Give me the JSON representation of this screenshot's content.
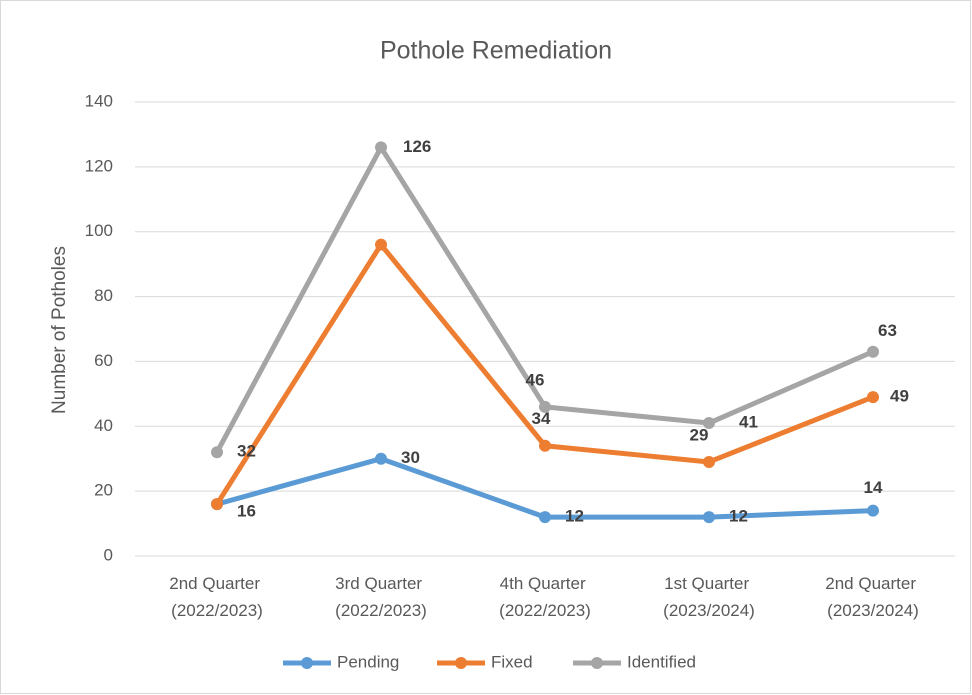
{
  "chart_data": {
    "type": "line",
    "title": "Pothole Remediation",
    "y_label": "Number of Potholes",
    "categories": [
      "2nd Quarter (2022/2023)",
      "3rd Quarter (2022/2023)",
      "4th Quarter (2022/2023)",
      "1st Quarter (2023/2024)",
      "2nd Quarter (2023/2024)"
    ],
    "series": [
      {
        "name": "Pending",
        "color": "#5b9bd5",
        "values": [
          16,
          30,
          12,
          12,
          14
        ]
      },
      {
        "name": "Fixed",
        "color": "#ed7d31",
        "values": [
          16,
          96,
          34,
          29,
          49
        ],
        "value_labels": [
          null,
          null,
          "34",
          "29",
          "49"
        ]
      },
      {
        "name": "Identified",
        "color": "#a5a5a5",
        "values": [
          32,
          126,
          46,
          41,
          63
        ]
      }
    ],
    "ylim": [
      0,
      140
    ],
    "yticks": [
      0,
      20,
      40,
      60,
      80,
      100,
      120,
      140
    ],
    "grid": true,
    "legend": "bottom"
  }
}
